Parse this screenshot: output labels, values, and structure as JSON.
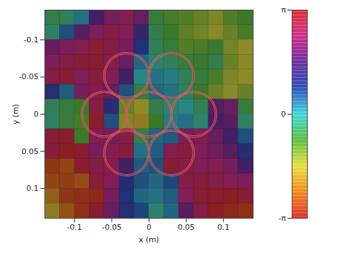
{
  "chart_data": {
    "type": "heatmap",
    "xlabel": "x (m)",
    "ylabel": "y (m)",
    "xlim": [
      -0.14,
      0.14
    ],
    "ylim": [
      -0.14,
      0.14
    ],
    "xticks": [
      -0.1,
      -0.05,
      0,
      0.05,
      0.1
    ],
    "yticks": [
      -0.1,
      -0.05,
      0,
      0.05,
      0.1
    ],
    "grid_x": [
      -0.13,
      -0.11,
      -0.09,
      -0.07,
      -0.05,
      -0.03,
      -0.01,
      0.01,
      0.03,
      0.05,
      0.07,
      0.09,
      0.11,
      0.13
    ],
    "grid_y": [
      -0.13,
      -0.11,
      -0.09,
      -0.07,
      -0.05,
      -0.03,
      -0.01,
      0.01,
      0.03,
      0.05,
      0.07,
      0.09,
      0.11,
      0.13
    ],
    "phase": [
      [
        -0.5,
        -0.4,
        0.2,
        1.5,
        2.2,
        2.5,
        2.0,
        -0.6,
        -0.9,
        -1.0,
        -1.2,
        -1.4,
        -1.0,
        -0.8
      ],
      [
        -0.3,
        0.5,
        1.8,
        2.3,
        2.6,
        2.4,
        1.2,
        -0.5,
        -0.8,
        -1.1,
        -1.3,
        -1.5,
        -1.2,
        -0.9
      ],
      [
        2.0,
        2.3,
        2.5,
        2.8,
        2.6,
        2.2,
        0.8,
        -0.4,
        -0.6,
        -1.0,
        -0.9,
        -0.7,
        -1.3,
        -1.6
      ],
      [
        2.3,
        2.6,
        2.8,
        2.9,
        2.5,
        2.0,
        0.3,
        -0.2,
        -0.4,
        -0.6,
        -0.7,
        -0.5,
        -1.2,
        -1.5
      ],
      [
        2.6,
        2.8,
        2.4,
        2.7,
        2.4,
        1.5,
        0.0,
        0.2,
        0.1,
        -0.4,
        -0.6,
        -0.9,
        -1.4,
        -1.6
      ],
      [
        1.0,
        0.4,
        2.2,
        2.5,
        2.0,
        0.5,
        -0.6,
        0.3,
        0.2,
        -0.3,
        -0.8,
        -1.2,
        -1.5,
        -1.2
      ],
      [
        -0.4,
        -0.6,
        -0.8,
        2.6,
        1.0,
        -1.2,
        -1.6,
        -0.5,
        -0.2,
        0.0,
        -0.4,
        1.8,
        2.0,
        -0.6
      ],
      [
        -0.3,
        -0.6,
        -0.9,
        2.9,
        0.5,
        -1.4,
        -1.8,
        -0.8,
        0.1,
        0.2,
        -0.2,
        1.6,
        1.8,
        -0.3
      ],
      [
        2.8,
        2.9,
        -0.8,
        2.4,
        2.2,
        2.6,
        -0.5,
        0.3,
        0.4,
        2.2,
        2.4,
        2.0,
        1.5,
        0.5
      ],
      [
        2.7,
        3.0,
        2.9,
        2.2,
        2.5,
        2.7,
        0.2,
        0.4,
        2.5,
        2.7,
        2.3,
        2.1,
        1.8,
        1.0
      ],
      [
        -2.8,
        -2.6,
        2.9,
        2.6,
        2.5,
        1.5,
        0.4,
        0.5,
        2.8,
        2.6,
        2.4,
        2.5,
        2.2,
        1.5
      ],
      [
        -2.6,
        -2.7,
        -2.5,
        2.8,
        2.4,
        1.0,
        0.5,
        0.3,
        0.6,
        2.6,
        2.7,
        2.6,
        2.4,
        2.3
      ],
      [
        -2.2,
        -2.8,
        -2.9,
        -3.0,
        2.2,
        0.8,
        0.3,
        0.2,
        0.4,
        2.4,
        2.8,
        2.9,
        3.0,
        2.8
      ],
      [
        -1.8,
        -2.4,
        -2.9,
        2.8,
        2.0,
        1.0,
        0.6,
        -0.2,
        0.3,
        1.8,
        2.6,
        3.0,
        -3.0,
        -2.9
      ]
    ],
    "circles": {
      "centers": [
        [
          -0.03,
          -0.052
        ],
        [
          0.03,
          -0.052
        ],
        [
          -0.06,
          0
        ],
        [
          0,
          0
        ],
        [
          0.06,
          0
        ],
        [
          -0.03,
          0.052
        ],
        [
          0.03,
          0.052
        ]
      ],
      "radii": [
        0.029,
        0.031
      ]
    },
    "color_range": [
      -3.14159,
      3.14159
    ],
    "color_ticks": [
      {
        "value": -3.14159,
        "label": "-π"
      },
      {
        "value": 0,
        "label": "0"
      },
      {
        "value": 3.14159,
        "label": "π"
      }
    ]
  }
}
